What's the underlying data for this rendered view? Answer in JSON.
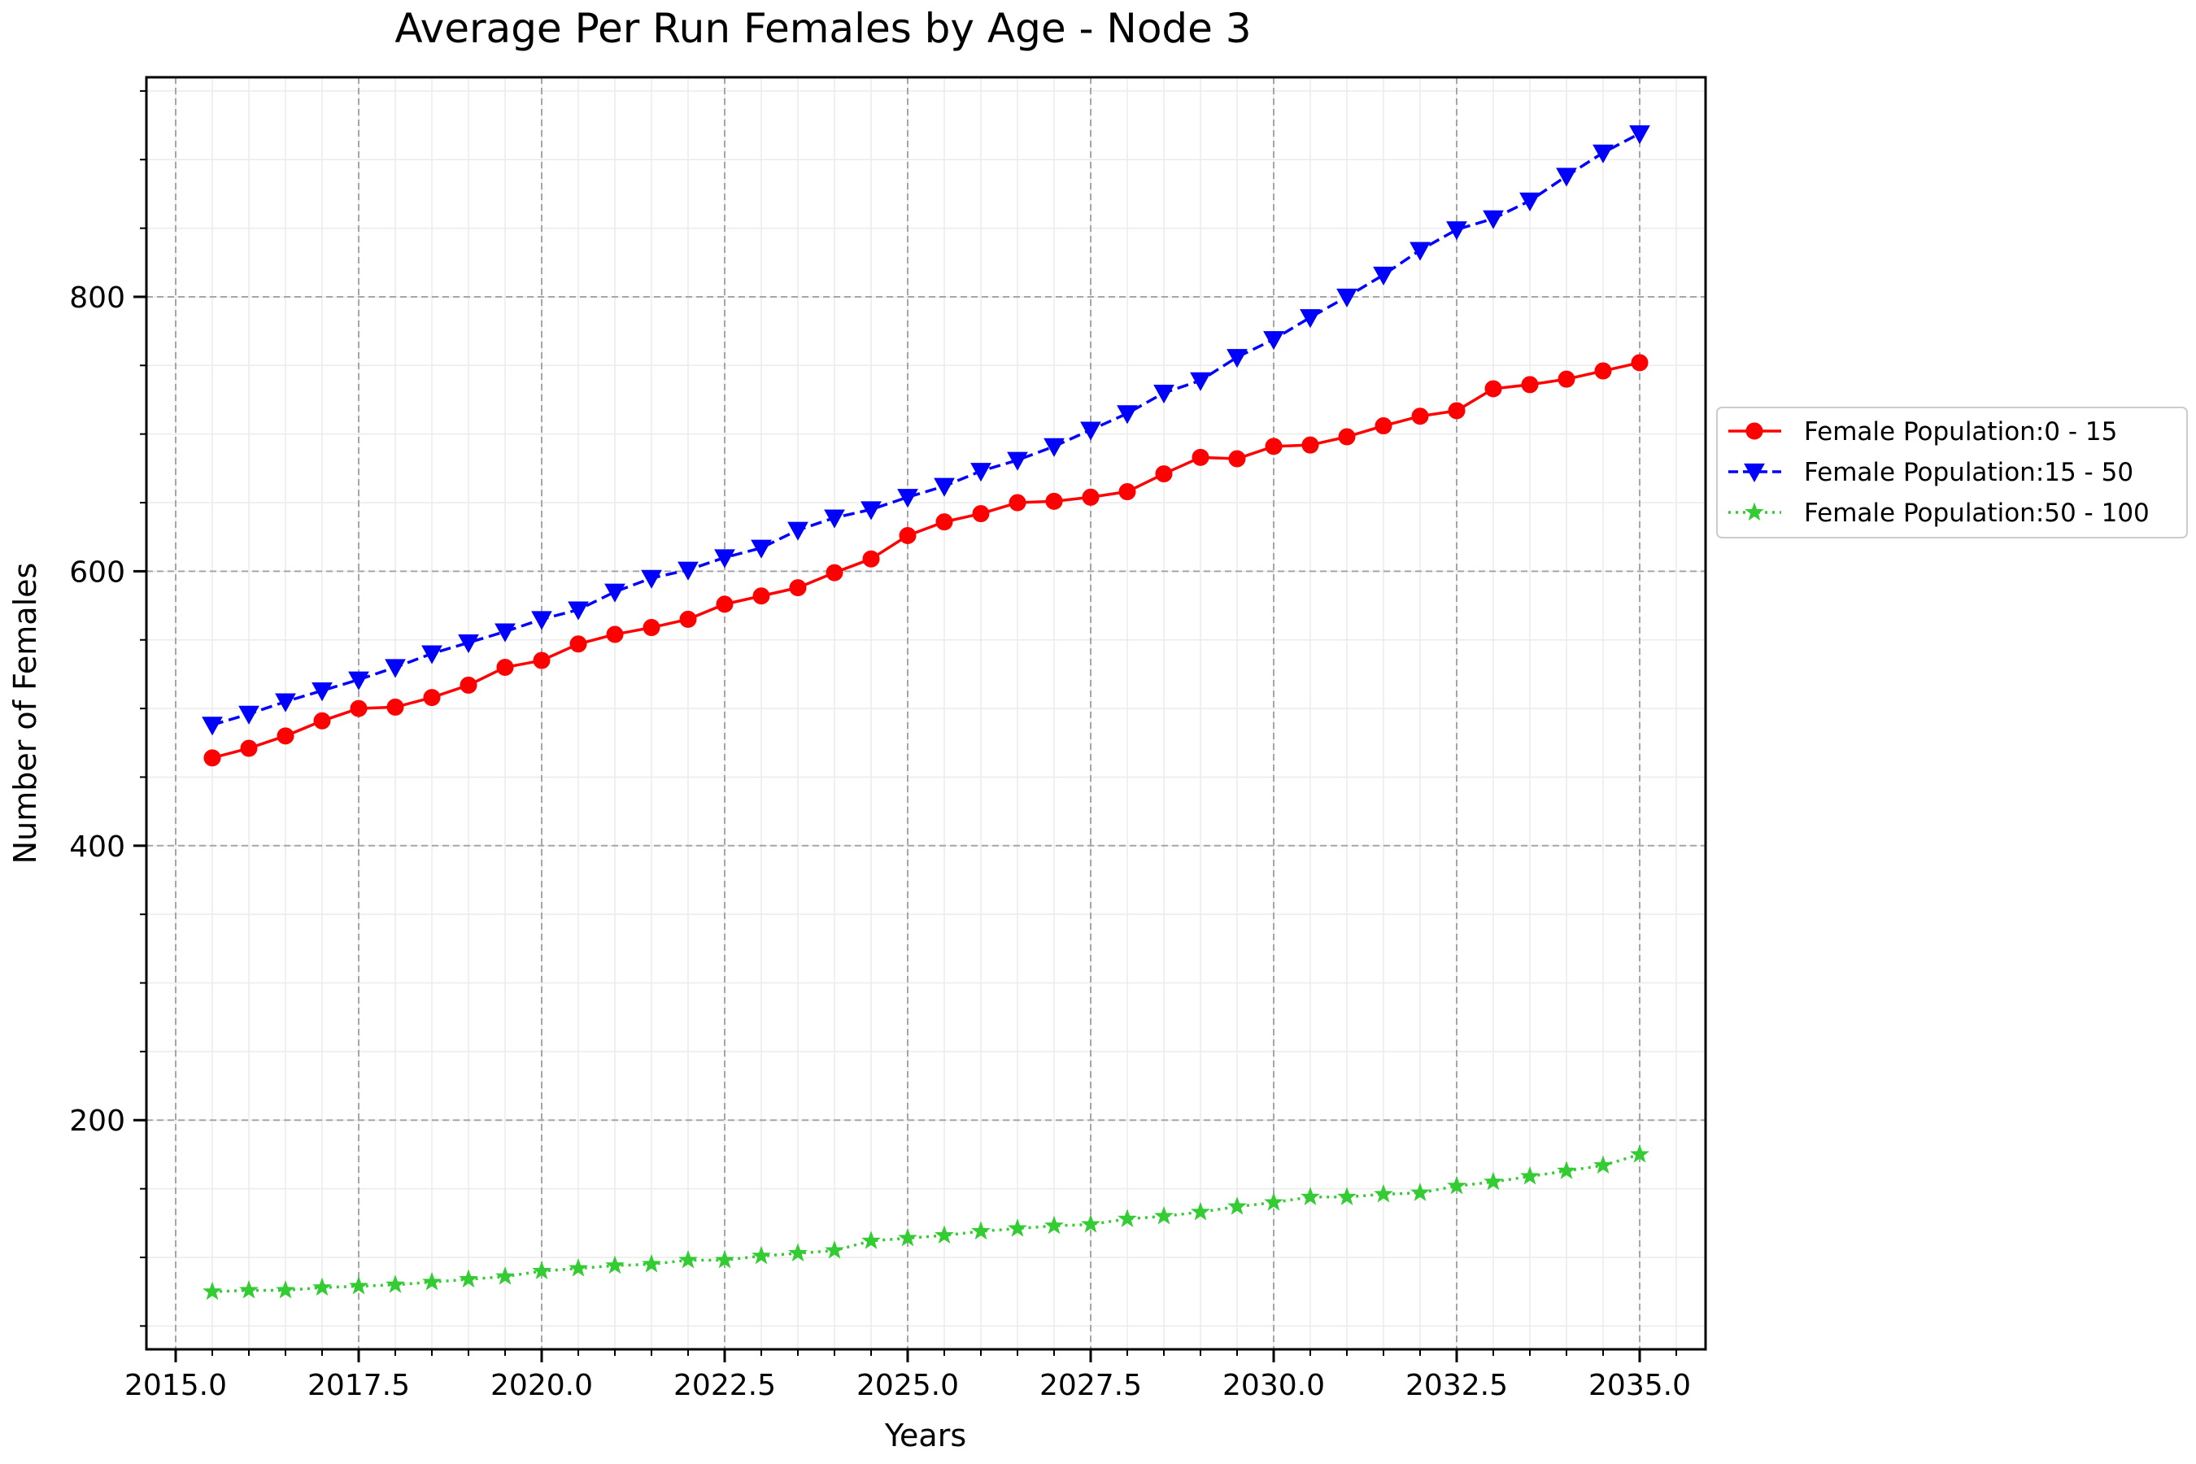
{
  "chart_data": {
    "type": "line",
    "title": "Average Per Run Females by Age - Node 3",
    "xlabel": "Years",
    "ylabel": "Number of Females",
    "xlim": [
      2014.6,
      2035.9
    ],
    "ylim": [
      33,
      960
    ],
    "x_ticks": [
      2015.0,
      2017.5,
      2020.0,
      2022.5,
      2025.0,
      2027.5,
      2030.0,
      2032.5,
      2035.0
    ],
    "x_tick_labels": [
      "2015.0",
      "2017.5",
      "2020.0",
      "2022.5",
      "2025.0",
      "2027.5",
      "2030.0",
      "2032.5",
      "2035.0"
    ],
    "y_ticks": [
      200,
      400,
      600,
      800
    ],
    "y_tick_labels": [
      "200",
      "400",
      "600",
      "800"
    ],
    "grid": true,
    "legend_position": "outside-right",
    "x": [
      2015.5,
      2016.0,
      2016.5,
      2017.0,
      2017.5,
      2018.0,
      2018.5,
      2019.0,
      2019.5,
      2020.0,
      2020.5,
      2021.0,
      2021.5,
      2022.0,
      2022.5,
      2023.0,
      2023.5,
      2024.0,
      2024.5,
      2025.0,
      2025.5,
      2026.0,
      2026.5,
      2027.0,
      2027.5,
      2028.0,
      2028.5,
      2029.0,
      2029.5,
      2030.0,
      2030.5,
      2031.0,
      2031.5,
      2032.0,
      2032.5,
      2033.0,
      2033.5,
      2034.0,
      2034.5,
      2035.0
    ],
    "series": [
      {
        "name": "Female Population:0 - 15",
        "color": "#ff0000",
        "marker": "circle",
        "linestyle": "solid",
        "values": [
          464,
          471,
          480,
          491,
          500,
          501,
          508,
          517,
          530,
          535,
          547,
          554,
          559,
          565,
          576,
          582,
          588,
          599,
          609,
          626,
          636,
          642,
          650,
          651,
          654,
          658,
          671,
          683,
          682,
          691,
          692,
          698,
          706,
          713,
          717,
          733,
          736,
          740,
          746,
          752
        ]
      },
      {
        "name": "Female Population:15 - 50",
        "color": "#0000ff",
        "marker": "triangle-down",
        "linestyle": "dashed",
        "values": [
          488,
          496,
          505,
          513,
          521,
          530,
          540,
          548,
          556,
          565,
          572,
          585,
          595,
          601,
          610,
          617,
          630,
          639,
          645,
          654,
          662,
          673,
          681,
          691,
          703,
          715,
          730,
          739,
          756,
          769,
          785,
          800,
          816,
          834,
          849,
          857,
          870,
          888,
          905,
          919
        ]
      },
      {
        "name": "Female Population:50 - 100",
        "color": "#33cc33",
        "marker": "star",
        "linestyle": "dotted",
        "values": [
          75,
          76,
          76,
          78,
          79,
          80,
          82,
          84,
          86,
          90,
          92,
          94,
          95,
          98,
          98,
          101,
          103,
          105,
          112,
          114,
          116,
          119,
          121,
          123,
          124,
          128,
          130,
          133,
          137,
          140,
          144,
          144,
          146,
          147,
          152,
          155,
          159,
          163,
          167,
          175
        ]
      }
    ]
  }
}
